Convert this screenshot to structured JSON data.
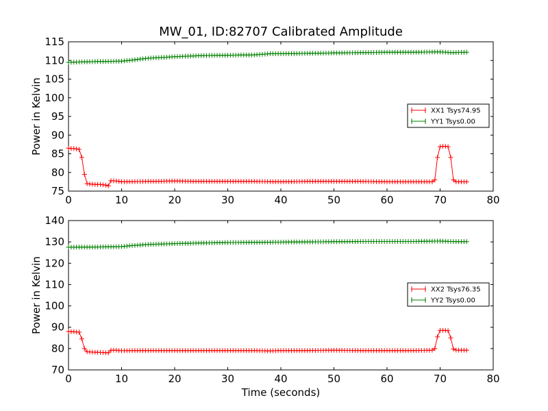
{
  "figure_title": "MW_01, ID:82707 Calibrated Amplitude",
  "colors": {
    "xx": "#ff0000",
    "yy": "#008000",
    "axes": "#000000"
  },
  "chart_data": [
    {
      "type": "line",
      "title": "MW_01, ID:82707 Calibrated Amplitude",
      "xlabel": "",
      "ylabel": "Power in Kelvin",
      "xlim": [
        0,
        80
      ],
      "ylim": [
        75,
        115
      ],
      "xticks": [
        "0",
        "10",
        "20",
        "30",
        "40",
        "50",
        "60",
        "70",
        "80"
      ],
      "yticks": [
        "75",
        "80",
        "85",
        "90",
        "95",
        "100",
        "105",
        "110",
        "115"
      ],
      "legend_position": "right-center",
      "marker": "+",
      "series": [
        {
          "name": "XX1 Tsys74.95",
          "color": "#ff0000",
          "x": [
            0,
            0.5,
            1,
            1.5,
            2,
            2.5,
            3,
            3.5,
            4,
            5,
            6,
            7,
            7.5,
            8,
            9,
            10,
            15,
            20,
            25,
            30,
            35,
            40,
            45,
            50,
            55,
            60,
            65,
            68.5,
            69,
            69.5,
            70,
            70.5,
            71,
            71.5,
            72,
            72.5,
            73,
            74,
            75
          ],
          "y": [
            86.5,
            86.4,
            86.4,
            86.3,
            86.2,
            84.0,
            79.5,
            77.0,
            76.9,
            76.8,
            76.8,
            76.6,
            76.4,
            77.8,
            77.7,
            77.5,
            77.6,
            77.7,
            77.6,
            77.6,
            77.6,
            77.5,
            77.6,
            77.6,
            77.6,
            77.5,
            77.5,
            77.5,
            78.0,
            84.0,
            86.9,
            87.0,
            87.0,
            86.9,
            84.0,
            78.0,
            77.5,
            77.5,
            77.5
          ]
        },
        {
          "name": "YY1 Tsys0.00",
          "color": "#008000",
          "x": [
            0,
            5,
            10,
            12,
            15,
            20,
            25,
            30,
            35,
            38,
            40,
            45,
            50,
            55,
            60,
            65,
            70,
            72,
            75
          ],
          "y": [
            109.5,
            109.7,
            109.8,
            110.1,
            110.6,
            111.0,
            111.3,
            111.4,
            111.5,
            111.8,
            111.8,
            111.9,
            112.0,
            112.1,
            112.2,
            112.2,
            112.3,
            112.1,
            112.2
          ]
        }
      ]
    },
    {
      "type": "line",
      "title": "",
      "xlabel": "Time (seconds)",
      "ylabel": "Power in Kelvin",
      "xlim": [
        0,
        80
      ],
      "ylim": [
        70,
        140
      ],
      "xticks": [
        "0",
        "10",
        "20",
        "30",
        "40",
        "50",
        "60",
        "70",
        "80"
      ],
      "yticks": [
        "70",
        "80",
        "90",
        "100",
        "110",
        "120",
        "130",
        "140"
      ],
      "legend_position": "right-center",
      "marker": "+",
      "series": [
        {
          "name": "XX2 Tsys76.35",
          "color": "#ff0000",
          "x": [
            0,
            0.5,
            1,
            1.5,
            2,
            2.5,
            3,
            3.5,
            4,
            5,
            6,
            7,
            7.5,
            8,
            9,
            10,
            15,
            20,
            25,
            30,
            35,
            38,
            40,
            45,
            50,
            55,
            60,
            65,
            68.5,
            69,
            69.5,
            70,
            70.5,
            71,
            71.5,
            72,
            72.5,
            73,
            74,
            75
          ],
          "y": [
            88.0,
            87.9,
            87.9,
            87.8,
            87.7,
            84.5,
            80.0,
            78.5,
            78.4,
            78.3,
            78.2,
            78.1,
            78.0,
            79.2,
            79.2,
            79.0,
            79.1,
            79.1,
            79.1,
            79.1,
            79.1,
            78.9,
            79.1,
            79.1,
            79.2,
            79.1,
            79.1,
            79.1,
            79.2,
            80.0,
            85.5,
            88.5,
            88.5,
            88.5,
            88.4,
            85.0,
            79.8,
            79.3,
            79.2,
            79.2
          ]
        },
        {
          "name": "YY2 Tsys0.00",
          "color": "#008000",
          "x": [
            0,
            5,
            10,
            12,
            15,
            20,
            25,
            30,
            35,
            40,
            45,
            50,
            55,
            60,
            65,
            70,
            72,
            75
          ],
          "y": [
            127.5,
            127.6,
            127.8,
            128.3,
            128.8,
            129.2,
            129.5,
            129.7,
            129.8,
            129.9,
            130.0,
            130.1,
            130.2,
            130.2,
            130.2,
            130.4,
            130.2,
            130.1
          ]
        }
      ]
    }
  ]
}
